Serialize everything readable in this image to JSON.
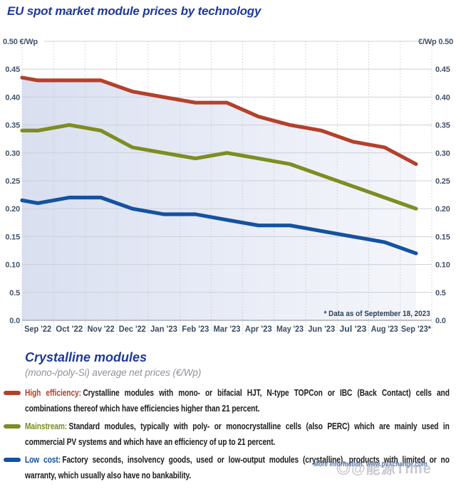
{
  "title": "EU spot market module prices by technology",
  "chart_data": {
    "type": "line",
    "unit": "€/Wp",
    "categories": [
      "Sep '22",
      "Oct '22",
      "Nov '22",
      "Dec '22",
      "Jan '23",
      "Feb '23",
      "Mar '23",
      "Apr '23",
      "May '23",
      "Jun '23",
      "Jul '23",
      "Aug '23",
      "Sep '23*"
    ],
    "series": [
      {
        "name": "High efficiency",
        "color": "#b4402b",
        "line_start_at_axis": 0.435,
        "values": [
          0.43,
          0.43,
          0.43,
          0.41,
          0.4,
          0.39,
          0.39,
          0.365,
          0.35,
          0.34,
          0.32,
          0.31,
          0.28
        ],
        "area_fill": true
      },
      {
        "name": "Mainstream",
        "color": "#7d8d21",
        "line_start_at_axis": 0.34,
        "values": [
          0.34,
          0.35,
          0.34,
          0.31,
          0.3,
          0.29,
          0.3,
          0.29,
          0.28,
          0.26,
          0.24,
          0.22,
          0.2
        ],
        "area_fill": false
      },
      {
        "name": "Low cost",
        "color": "#1452a0",
        "line_start_at_axis": 0.215,
        "values": [
          0.21,
          0.22,
          0.22,
          0.2,
          0.19,
          0.19,
          0.18,
          0.17,
          0.17,
          0.16,
          0.15,
          0.14,
          0.12
        ],
        "area_fill": false
      }
    ],
    "ylim": [
      0,
      0.5
    ],
    "ytick_step": 0.05,
    "yticks_left": [
      "0.50 €/Wp",
      "0.45",
      "0.40",
      "0.35",
      "0.30",
      "0.25",
      "0.20",
      "0.15",
      "0.10",
      "0.5",
      "0.0"
    ],
    "yticks_right": [
      "€/Wp 0.50",
      "0.45",
      "0.40",
      "0.35",
      "0.30",
      "0.25",
      "0.20",
      "0.15",
      "0.10",
      "0.5",
      "0.0"
    ],
    "grid": {
      "horizontal": "solid",
      "vertical": "dotted"
    },
    "legend_position": "below",
    "footnote": "* Data as of September 18, 2023"
  },
  "legend": {
    "heading": "Crystalline modules",
    "subtitle": "(mono-/poly-Si) average net prices (€/Wp)",
    "entries": [
      {
        "label": "High efficiency:",
        "color": "#b4402b",
        "text": "Crystalline modules with mono- or bifacial HJT, N-type TOPCon or IBC (Back Contact) cells and combinations thereof which have efficiencies higher than 21 percent."
      },
      {
        "label": "Mainstream:",
        "color": "#7d8d21",
        "text": "Standard modules, typically with poly- or monocrystalline cells (also PERC) which are mainly used in commercial PV systems and which have an efficiency of up to 21 percent."
      },
      {
        "label": "Low cost:",
        "color": "#1452a0",
        "text": "Factory seconds, insolvency goods, used or low-output modules (crystalline), products with limited or no warranty, which usually also have no bankability."
      }
    ]
  },
  "footer": {
    "more_info": "More information: www.pvXchange.com",
    "watermark_icon": "◎",
    "watermark_text": "@能源Time"
  }
}
